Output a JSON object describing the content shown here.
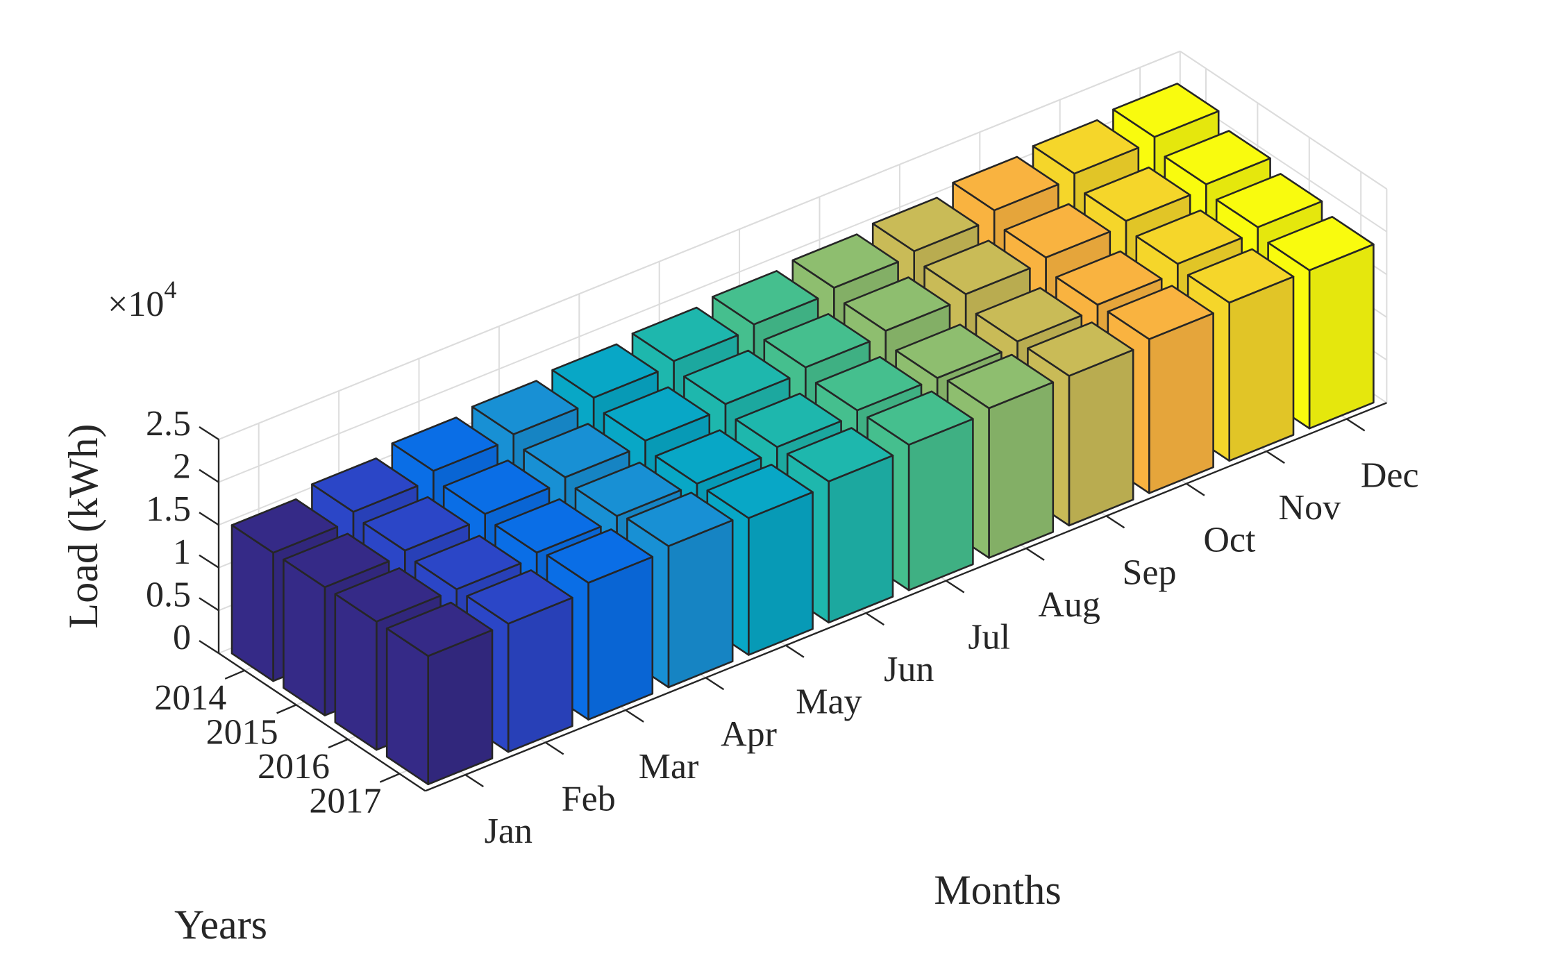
{
  "chart_data": {
    "type": "bar3d",
    "title": "",
    "xlabel": "Months",
    "ylabel": "Years",
    "zlabel": "Load (kWh)",
    "z_exponent_label": "×10",
    "z_exponent_power": "4",
    "months": [
      "Jan",
      "Feb",
      "Mar",
      "Apr",
      "May",
      "Jun",
      "Jul",
      "Aug",
      "Sep",
      "Oct",
      "Nov",
      "Dec"
    ],
    "years": [
      "2014",
      "2015",
      "2016",
      "2017"
    ],
    "z_ticks": [
      "0",
      "0.5",
      "1",
      "1.5",
      "2",
      "2.5"
    ],
    "zlim": [
      0,
      25000
    ],
    "grid": true,
    "values": [
      [
        15000,
        16000,
        17000,
        17500,
        18000,
        18500,
        19000,
        19500,
        20000,
        21000,
        21500,
        22000
      ],
      [
        15000,
        15500,
        16000,
        16500,
        17000,
        17500,
        18000,
        18500,
        19000,
        19500,
        20000,
        20500
      ],
      [
        15000,
        15000,
        15500,
        16000,
        16000,
        16500,
        17000,
        17000,
        17500,
        18000,
        19000,
        19500
      ],
      [
        15000,
        15000,
        16000,
        16500,
        16000,
        16500,
        17000,
        17500,
        17500,
        18000,
        18500,
        18500
      ]
    ],
    "month_colors": [
      "#352a87",
      "#2b46c7",
      "#0a6ee6",
      "#1890d4",
      "#08a7c6",
      "#1eb7ad",
      "#45bf8e",
      "#8ebe6f",
      "#c9bb57",
      "#f9b340",
      "#f5d62a",
      "#f9fb0e"
    ]
  }
}
